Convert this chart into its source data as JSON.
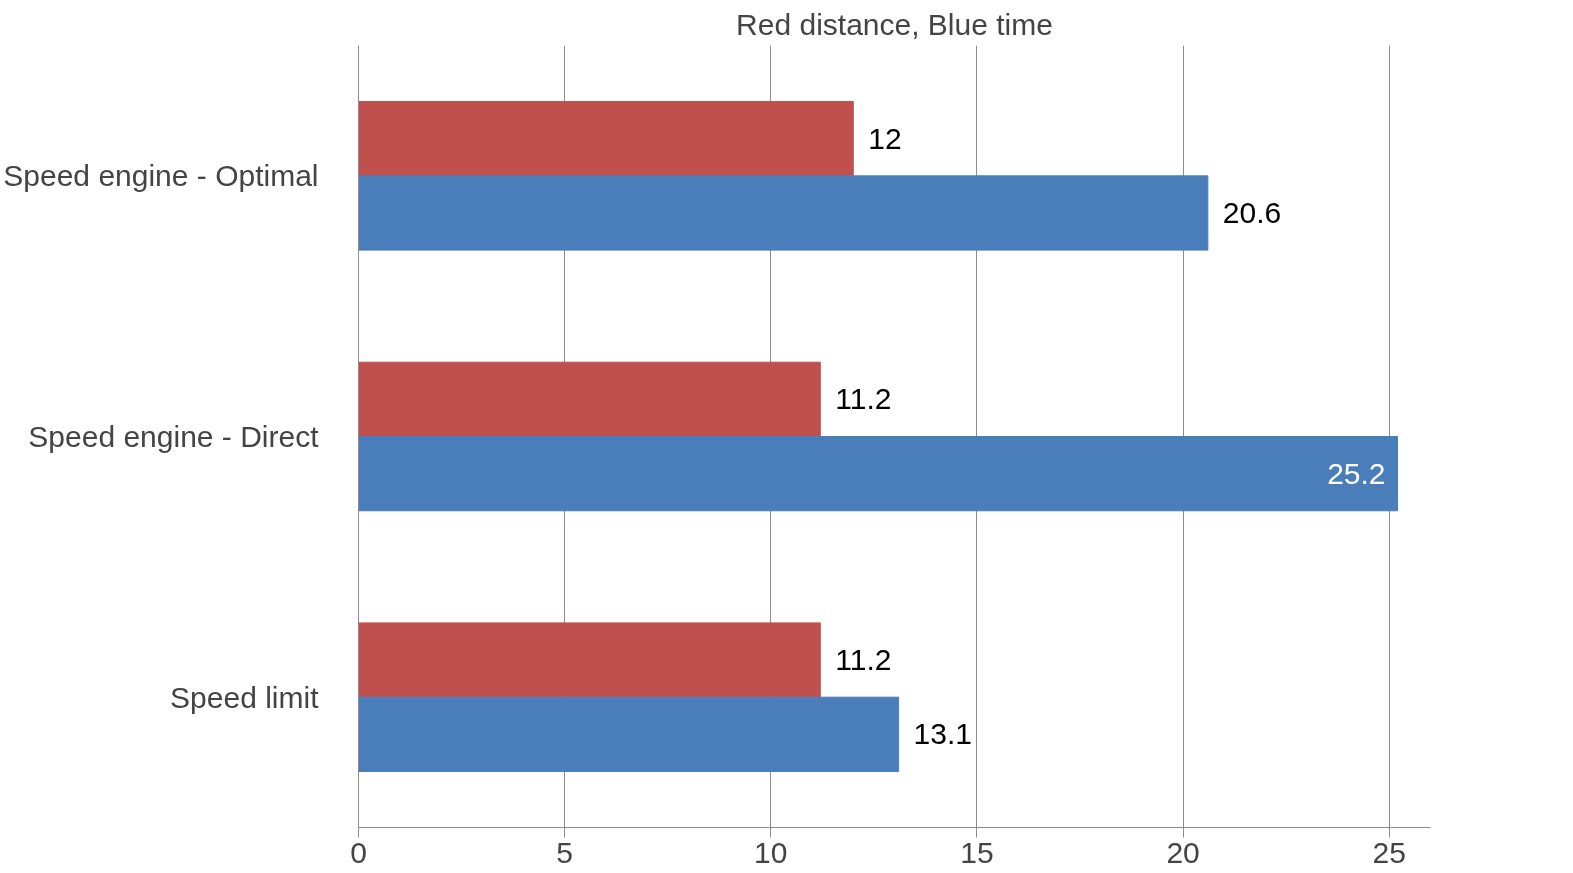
{
  "chart_data": {
    "type": "bar",
    "orientation": "horizontal",
    "title": "Red distance, Blue time",
    "categories": [
      "Speed engine - Optimal",
      "Speed engine - Direct",
      "Speed limit"
    ],
    "series": [
      {
        "color": "#c0504d",
        "values": [
          12,
          11.2,
          11.2
        ]
      },
      {
        "color": "#4a7ebb",
        "values": [
          20.6,
          25.2,
          13.1
        ]
      }
    ],
    "xlim": [
      0,
      26
    ],
    "xticks": [
      0,
      5,
      10,
      15,
      20,
      25
    ],
    "grid": "x",
    "data_labels": true
  }
}
